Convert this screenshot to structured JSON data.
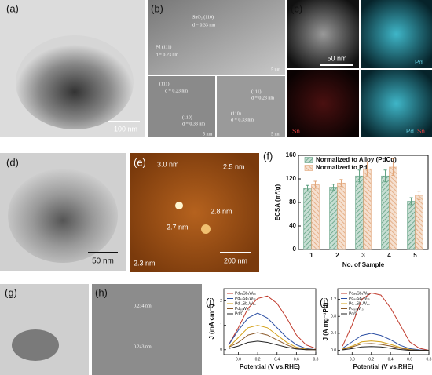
{
  "figure": {
    "a": {
      "label": "(a)",
      "scale_bar": "100 nm"
    },
    "b": {
      "label": "(b)",
      "main": [
        "SnO₂ (110)",
        "d = 0.33 nm",
        "Pd (111)",
        "d = 0.23 nm",
        "5 nm"
      ],
      "inset1": [
        "(111)",
        "d = 0.23 nm",
        "(110)",
        "d = 0.33 nm",
        "5 nm"
      ],
      "inset2": [
        "(111)",
        "d = 0.23 nm",
        "(110)",
        "d = 0.33 nm",
        "5 nm"
      ]
    },
    "c": {
      "label": "(c)",
      "scale_bar": "50 nm",
      "maps": [
        "Pd",
        "Sn",
        "Pd",
        "Sn"
      ]
    },
    "d": {
      "label": "(d)",
      "scale_bar": "50 nm"
    },
    "e": {
      "label": "(e)",
      "heights": [
        "3.0 nm",
        "2.5 nm",
        "2.8 nm",
        "2.7 nm",
        "2.3 nm"
      ],
      "scale_bar": "200 nm"
    },
    "g": {
      "label": "(g)"
    },
    "h": {
      "label": "(h)",
      "spacings": [
        "0.234 nm",
        "0.243 nm"
      ]
    }
  },
  "chart_data": [
    {
      "type": "bar",
      "panel_label": "(f)",
      "categories": [
        "1",
        "2",
        "3",
        "4",
        "5"
      ],
      "series": [
        {
          "name": "Normalized to Alloy (PdCu)",
          "color": "#5e9f80",
          "values": [
            104,
            106,
            125,
            125,
            82
          ],
          "errors": [
            5,
            5,
            10,
            10,
            6
          ]
        },
        {
          "name": "Normalized to Pd",
          "color": "#e2a578",
          "values": [
            110,
            113,
            137,
            140,
            92
          ],
          "errors": [
            6,
            6,
            12,
            14,
            7
          ]
        }
      ],
      "ylim": [
        0,
        160
      ],
      "yticks": [
        0,
        40,
        80,
        120,
        160
      ],
      "y_label": "ECSA (m²/g)",
      "x_label": "No. of Sample",
      "legend": "upper-left"
    },
    {
      "type": "line",
      "panel_label": "(i)",
      "x": [
        -0.1,
        0,
        0.1,
        0.2,
        0.3,
        0.4,
        0.5,
        0.6,
        0.7,
        0.8
      ],
      "xlim": [
        -0.15,
        0.8
      ],
      "xticks": [
        {
          "value": 0,
          "label": "0.0"
        },
        {
          "value": 0.2,
          "label": "0.2"
        },
        {
          "value": 0.4,
          "label": "0.4"
        },
        {
          "value": 0.6,
          "label": "0.6"
        },
        {
          "value": 0.8,
          "label": "0.8"
        }
      ],
      "ylim": [
        -0.2,
        2.5
      ],
      "yticks": [
        0,
        1,
        2
      ],
      "y_label": "J (mA cm⁻²)",
      "x_label": "Potential (V vs.RHE)",
      "legend": "upper-left",
      "series": [
        {
          "name": "Pd₈₅Sb₅W₁₀",
          "color": "#c0392b",
          "values": [
            0.2,
            0.9,
            1.7,
            2.1,
            2.2,
            1.9,
            1.3,
            0.6,
            0.2,
            0.05
          ]
        },
        {
          "name": "Pd₈₀Sb₅W₁₅",
          "color": "#2c4fa3",
          "values": [
            0.2,
            0.8,
            1.3,
            1.5,
            1.3,
            0.9,
            0.5,
            0.2,
            0.05,
            0
          ]
        },
        {
          "name": "Pd₇₅Sb₅W₂₀",
          "color": "#d4a017",
          "values": [
            0.1,
            0.5,
            0.9,
            1.0,
            0.9,
            0.6,
            0.3,
            0.1,
            0.02,
            0
          ]
        },
        {
          "name": "Pd₉₀W₁₀",
          "color": "#8b5a2b",
          "values": [
            0.1,
            0.3,
            0.6,
            0.7,
            0.6,
            0.4,
            0.2,
            0.05,
            0,
            0
          ]
        },
        {
          "name": "Pd/C",
          "color": "#222222",
          "values": [
            0.05,
            0.15,
            0.3,
            0.35,
            0.3,
            0.2,
            0.1,
            0.03,
            0,
            0
          ]
        }
      ]
    },
    {
      "type": "line",
      "panel_label": "(j)",
      "x": [
        -0.1,
        0,
        0.1,
        0.2,
        0.3,
        0.4,
        0.5,
        0.6,
        0.7,
        0.8
      ],
      "xlim": [
        -0.15,
        0.8
      ],
      "xticks": [
        {
          "value": 0,
          "label": "0.0"
        },
        {
          "value": 0.2,
          "label": "0.2"
        },
        {
          "value": 0.4,
          "label": "0.4"
        },
        {
          "value": 0.6,
          "label": "0.6"
        },
        {
          "value": 0.8,
          "label": "0.8"
        }
      ],
      "ylim": [
        -0.1,
        1.45
      ],
      "yticks": [
        {
          "value": 0,
          "label": "0.0"
        },
        {
          "value": 0.4,
          "label": "0.4"
        },
        {
          "value": 0.8,
          "label": "0.8"
        },
        {
          "value": 1.2,
          "label": "1.2"
        }
      ],
      "y_label": "J (A mg⁻¹Pd)",
      "x_label": "Potential (V vs.RHE)",
      "legend": "upper-left",
      "series": [
        {
          "name": "Pd₈₅Sb₅W₁₀",
          "color": "#c0392b",
          "values": [
            0.1,
            0.6,
            1.2,
            1.35,
            1.3,
            1.0,
            0.6,
            0.2,
            0.05,
            0
          ]
        },
        {
          "name": "Pd₈₀Sb₅W₁₅",
          "color": "#2c4fa3",
          "values": [
            0.05,
            0.2,
            0.35,
            0.4,
            0.35,
            0.25,
            0.12,
            0.04,
            0.01,
            0
          ]
        },
        {
          "name": "Pd₇₅Sb₅W₂₀",
          "color": "#d4a017",
          "values": [
            0.03,
            0.1,
            0.2,
            0.22,
            0.2,
            0.14,
            0.07,
            0.02,
            0,
            0
          ]
        },
        {
          "name": "Pd₉₀W₁₀",
          "color": "#8b5a2b",
          "values": [
            0.02,
            0.08,
            0.15,
            0.16,
            0.14,
            0.1,
            0.05,
            0.01,
            0,
            0
          ]
        },
        {
          "name": "Pd/C",
          "color": "#222222",
          "values": [
            0.01,
            0.04,
            0.08,
            0.09,
            0.08,
            0.05,
            0.02,
            0,
            0,
            0
          ]
        }
      ]
    }
  ]
}
